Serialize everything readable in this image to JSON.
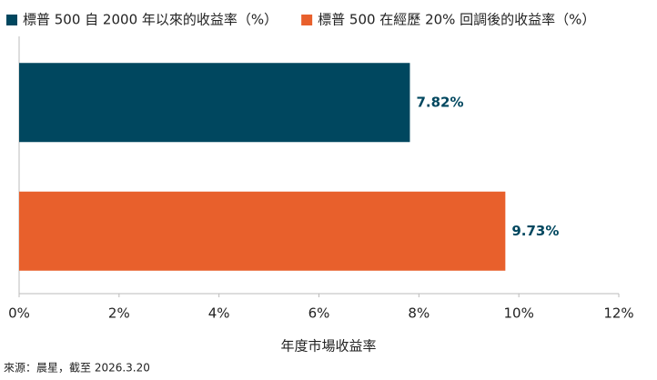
{
  "chart_data": {
    "type": "bar",
    "orientation": "horizontal",
    "series": [
      {
        "name": "標普 500 自 2000 年以來的收益率（%）",
        "color": "#00475f",
        "values": [
          7.82
        ],
        "value_labels": [
          "7.82%"
        ]
      },
      {
        "name": "標普 500 在經歷 20% 回調後的收益率（%）",
        "color": "#e8602c",
        "values": [
          9.73
        ],
        "value_labels": [
          "9.73%"
        ]
      }
    ],
    "xlabel": "年度市場收益率",
    "source": "來源：晨星，截至 2026.3.20",
    "xlim": [
      0,
      12
    ],
    "xticks": [
      {
        "value": 0,
        "label": "0%"
      },
      {
        "value": 2,
        "label": "2%"
      },
      {
        "value": 4,
        "label": "4%"
      },
      {
        "value": 6,
        "label": "6%"
      },
      {
        "value": 8,
        "label": "8%"
      },
      {
        "value": 10,
        "label": "10%"
      },
      {
        "value": 12,
        "label": "12%"
      }
    ],
    "legend": "top-left"
  }
}
